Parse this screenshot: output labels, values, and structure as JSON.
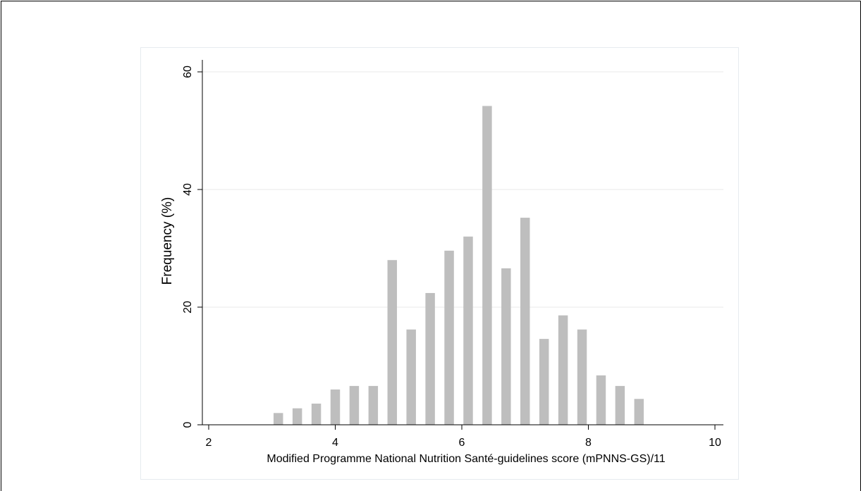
{
  "chart_data": {
    "type": "bar",
    "title": "",
    "xlabel": "Modified Programme National Nutrition Santé-guidelines score (mPNNS-GS)/11",
    "ylabel": "Frequency (%)",
    "xlim": [
      1.9,
      10.1
    ],
    "ylim": [
      0,
      62
    ],
    "x_ticks": [
      2,
      4,
      6,
      8,
      10
    ],
    "y_ticks": [
      0,
      20,
      40,
      60
    ],
    "grid": "horizontal",
    "bar_color": "#bebebe",
    "bar_width": 0.15,
    "x": [
      3.1,
      3.4,
      3.7,
      4.0,
      4.3,
      4.6,
      4.9,
      5.2,
      5.5,
      5.8,
      6.1,
      6.4,
      6.7,
      7.0,
      7.3,
      7.6,
      7.9,
      8.2,
      8.5,
      8.8
    ],
    "values": [
      2.0,
      2.8,
      3.6,
      6.0,
      6.6,
      6.6,
      28.0,
      16.2,
      22.4,
      29.6,
      32.0,
      54.2,
      26.6,
      35.2,
      14.6,
      18.6,
      16.2,
      8.4,
      6.6,
      4.4
    ]
  }
}
